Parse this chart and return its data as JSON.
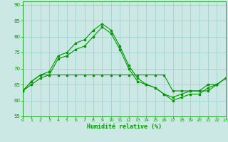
{
  "xlabel": "Humidité relative (%)",
  "background_color": "#cce8e4",
  "grid_color": "#99cccc",
  "line_color": "#009900",
  "marker_color": "#006600",
  "xlim": [
    0,
    23
  ],
  "ylim": [
    55,
    91
  ],
  "yticks": [
    55,
    60,
    65,
    70,
    75,
    80,
    85,
    90
  ],
  "xticks": [
    0,
    1,
    2,
    3,
    4,
    5,
    6,
    7,
    8,
    9,
    10,
    11,
    12,
    13,
    14,
    15,
    16,
    17,
    18,
    19,
    20,
    21,
    22,
    23
  ],
  "series1_x": [
    0,
    1,
    2,
    3,
    4,
    5,
    6,
    7,
    8,
    9,
    10,
    11,
    12,
    13,
    14,
    15,
    16,
    17,
    18,
    19,
    20,
    21,
    22,
    23
  ],
  "series1_y": [
    63,
    66,
    68,
    68,
    68,
    68,
    68,
    68,
    68,
    68,
    68,
    68,
    68,
    68,
    68,
    68,
    68,
    63,
    63,
    63,
    63,
    63,
    65,
    67
  ],
  "series2_x": [
    0,
    1,
    2,
    3,
    4,
    5,
    6,
    7,
    8,
    9,
    10,
    11,
    12,
    13,
    14,
    15,
    16,
    17,
    18,
    19,
    20,
    21,
    22,
    23
  ],
  "series2_y": [
    63,
    66,
    68,
    69,
    74,
    75,
    78,
    79,
    82,
    84,
    82,
    77,
    71,
    67,
    65,
    64,
    62,
    61,
    62,
    63,
    63,
    65,
    65,
    67
  ],
  "series3_x": [
    0,
    1,
    2,
    3,
    4,
    5,
    6,
    7,
    8,
    9,
    10,
    11,
    12,
    13,
    14,
    15,
    16,
    17,
    18,
    19,
    20,
    21,
    22,
    23
  ],
  "series3_y": [
    63,
    65,
    67,
    68,
    73,
    74,
    76,
    77,
    80,
    83,
    81,
    76,
    70,
    66,
    65,
    64,
    62,
    60,
    61,
    62,
    62,
    64,
    65,
    67
  ]
}
